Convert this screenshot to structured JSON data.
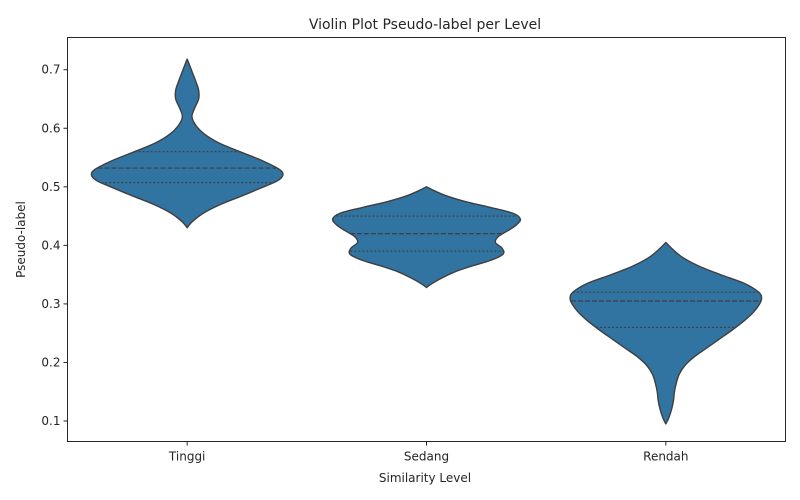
{
  "chart_data": {
    "type": "violin",
    "title": "Violin Plot Pseudo-label per Level",
    "xlabel": "Similarity Level",
    "ylabel": "Pseudo-label",
    "ylim": [
      0.065,
      0.755
    ],
    "yticks": [
      0.1,
      0.2,
      0.3,
      0.4,
      0.5,
      0.6,
      0.7
    ],
    "ytick_labels": [
      "0.1",
      "0.2",
      "0.3",
      "0.4",
      "0.5",
      "0.6",
      "0.7"
    ],
    "categories": [
      "Tinggi",
      "Sedang",
      "Rendah"
    ],
    "inner": "quartile",
    "grid": false,
    "legend": "none",
    "color": "#3274a1",
    "edge_color": "#3f3f3f",
    "violins": [
      {
        "category": "Tinggi",
        "min": 0.43,
        "max": 0.718,
        "q1": 0.507,
        "median": 0.532,
        "q3": 0.56,
        "profile": [
          [
            0.43,
            0.0
          ],
          [
            0.44,
            0.05
          ],
          [
            0.455,
            0.17
          ],
          [
            0.47,
            0.35
          ],
          [
            0.485,
            0.58
          ],
          [
            0.5,
            0.8
          ],
          [
            0.51,
            0.94
          ],
          [
            0.52,
            1.0
          ],
          [
            0.53,
            0.96
          ],
          [
            0.545,
            0.78
          ],
          [
            0.56,
            0.55
          ],
          [
            0.575,
            0.33
          ],
          [
            0.59,
            0.18
          ],
          [
            0.605,
            0.09
          ],
          [
            0.62,
            0.05
          ],
          [
            0.635,
            0.08
          ],
          [
            0.65,
            0.12
          ],
          [
            0.665,
            0.12
          ],
          [
            0.68,
            0.09
          ],
          [
            0.695,
            0.055
          ],
          [
            0.71,
            0.02
          ],
          [
            0.718,
            0.0
          ]
        ]
      },
      {
        "category": "Sedang",
        "min": 0.328,
        "max": 0.5,
        "q1": 0.39,
        "median": 0.42,
        "q3": 0.45,
        "profile": [
          [
            0.328,
            0.0
          ],
          [
            0.335,
            0.06
          ],
          [
            0.345,
            0.17
          ],
          [
            0.355,
            0.3
          ],
          [
            0.365,
            0.48
          ],
          [
            0.375,
            0.68
          ],
          [
            0.385,
            0.8
          ],
          [
            0.395,
            0.79
          ],
          [
            0.405,
            0.72
          ],
          [
            0.415,
            0.75
          ],
          [
            0.425,
            0.85
          ],
          [
            0.435,
            0.94
          ],
          [
            0.445,
            0.98
          ],
          [
            0.455,
            0.9
          ],
          [
            0.465,
            0.66
          ],
          [
            0.475,
            0.4
          ],
          [
            0.485,
            0.2
          ],
          [
            0.495,
            0.06
          ],
          [
            0.5,
            0.0
          ]
        ]
      },
      {
        "category": "Rendah",
        "min": 0.095,
        "max": 0.405,
        "q1": 0.26,
        "median": 0.305,
        "q3": 0.32,
        "profile": [
          [
            0.095,
            0.0
          ],
          [
            0.105,
            0.03
          ],
          [
            0.12,
            0.06
          ],
          [
            0.135,
            0.08
          ],
          [
            0.15,
            0.09
          ],
          [
            0.165,
            0.11
          ],
          [
            0.18,
            0.14
          ],
          [
            0.195,
            0.2
          ],
          [
            0.21,
            0.3
          ],
          [
            0.225,
            0.43
          ],
          [
            0.24,
            0.56
          ],
          [
            0.255,
            0.69
          ],
          [
            0.27,
            0.81
          ],
          [
            0.285,
            0.91
          ],
          [
            0.3,
            0.98
          ],
          [
            0.31,
            1.0
          ],
          [
            0.32,
            0.97
          ],
          [
            0.335,
            0.82
          ],
          [
            0.35,
            0.57
          ],
          [
            0.365,
            0.34
          ],
          [
            0.38,
            0.17
          ],
          [
            0.395,
            0.06
          ],
          [
            0.405,
            0.0
          ]
        ]
      }
    ]
  }
}
